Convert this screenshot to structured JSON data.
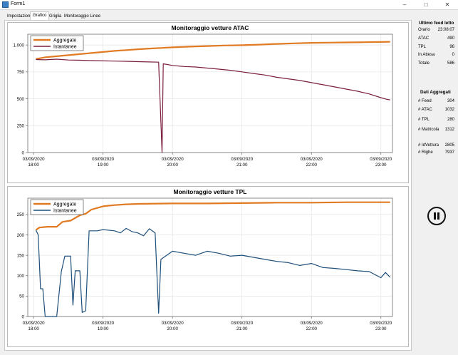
{
  "window": {
    "title": "Form1",
    "minimize_icon": "minimize-icon",
    "maximize_icon": "maximize-icon",
    "close_icon": "close-icon"
  },
  "tabs": [
    {
      "label": "Impostazioni",
      "active": false
    },
    {
      "label": "Grafico",
      "active": true
    },
    {
      "label": "Griglia",
      "active": false
    },
    {
      "label": "Monitoraggio Linee",
      "active": false
    }
  ],
  "sidebar": {
    "feed": {
      "title": "Ultimo feed letto",
      "rows": [
        {
          "label": "Orario",
          "value": "23:08:07"
        },
        {
          "label": "ATAC",
          "value": "490"
        },
        {
          "label": "TPL",
          "value": "96"
        },
        {
          "label": "In Attesa",
          "value": "0"
        },
        {
          "label": "Totale",
          "value": "586"
        }
      ]
    },
    "aggregates": {
      "title": "Dati Aggregati",
      "rows": [
        {
          "label": "# Feed",
          "value": "304"
        },
        {
          "label": "# ATAC",
          "value": "1032"
        },
        {
          "label": "# TPL",
          "value": "280"
        },
        {
          "label": "# Matricola",
          "value": "1312"
        },
        {
          "label": "# IdVettura",
          "value": "2805"
        },
        {
          "label": "# Righe",
          "value": "7937"
        }
      ]
    },
    "pause_icon": "pause-icon"
  },
  "chart_data": [
    {
      "type": "line",
      "title": "Monitoraggio vetture ATAC",
      "x_ticks": [
        {
          "t": "18:00",
          "date": "03/09/2020"
        },
        {
          "t": "19:00",
          "date": "03/09/2020"
        },
        {
          "t": "20:00",
          "date": "03/09/2020"
        },
        {
          "t": "21:00",
          "date": "03/09/2020"
        },
        {
          "t": "22:00",
          "date": "03/09/2020"
        },
        {
          "t": "23:00",
          "date": "03/09/2020"
        }
      ],
      "xlim": [
        "17:55",
        "23:10"
      ],
      "ylim": [
        0,
        1100
      ],
      "y_ticks": [
        0,
        250,
        500,
        750,
        1000
      ],
      "y_tick_labels": [
        "0",
        "250",
        "500",
        "750",
        "1.000"
      ],
      "grid": true,
      "legend": "top-left",
      "series": [
        {
          "name": "Aggregate",
          "color": "#e07b24",
          "points": [
            [
              "18:02",
              870
            ],
            [
              "18:10",
              885
            ],
            [
              "18:20",
              895
            ],
            [
              "18:30",
              905
            ],
            [
              "18:40",
              915
            ],
            [
              "18:50",
              925
            ],
            [
              "19:00",
              935
            ],
            [
              "19:10",
              945
            ],
            [
              "19:20",
              952
            ],
            [
              "19:30",
              960
            ],
            [
              "19:40",
              967
            ],
            [
              "19:50",
              972
            ],
            [
              "20:00",
              978
            ],
            [
              "20:15",
              985
            ],
            [
              "20:30",
              990
            ],
            [
              "20:45",
              995
            ],
            [
              "21:00",
              998
            ],
            [
              "21:15",
              1003
            ],
            [
              "21:30",
              1010
            ],
            [
              "21:45",
              1015
            ],
            [
              "22:00",
              1020
            ],
            [
              "22:15",
              1022
            ],
            [
              "22:30",
              1024
            ],
            [
              "22:45",
              1026
            ],
            [
              "23:00",
              1028
            ],
            [
              "23:08",
              1030
            ]
          ]
        },
        {
          "name": "Istantanee",
          "color": "#7a1f3d",
          "points": [
            [
              "18:02",
              865
            ],
            [
              "18:10",
              862
            ],
            [
              "18:20",
              868
            ],
            [
              "18:30",
              860
            ],
            [
              "18:40",
              858
            ],
            [
              "18:50",
              855
            ],
            [
              "19:00",
              852
            ],
            [
              "19:10",
              850
            ],
            [
              "19:20",
              848
            ],
            [
              "19:30",
              845
            ],
            [
              "19:40",
              842
            ],
            [
              "19:48",
              840
            ],
            [
              "19:51",
              0
            ],
            [
              "19:52",
              825
            ],
            [
              "20:00",
              810
            ],
            [
              "20:10",
              800
            ],
            [
              "20:20",
              795
            ],
            [
              "20:30",
              785
            ],
            [
              "20:40",
              775
            ],
            [
              "20:50",
              765
            ],
            [
              "21:00",
              750
            ],
            [
              "21:10",
              735
            ],
            [
              "21:20",
              720
            ],
            [
              "21:30",
              700
            ],
            [
              "21:40",
              685
            ],
            [
              "21:50",
              670
            ],
            [
              "22:00",
              650
            ],
            [
              "22:10",
              630
            ],
            [
              "22:20",
              610
            ],
            [
              "22:30",
              590
            ],
            [
              "22:40",
              570
            ],
            [
              "22:50",
              545
            ],
            [
              "23:00",
              510
            ],
            [
              "23:05",
              495
            ],
            [
              "23:08",
              490
            ]
          ]
        }
      ]
    },
    {
      "type": "line",
      "title": "Monitoraggio vetture TPL",
      "x_ticks": [
        {
          "t": "18:00",
          "date": "03/09/2020"
        },
        {
          "t": "19:00",
          "date": "03/09/2020"
        },
        {
          "t": "20:00",
          "date": "03/09/2020"
        },
        {
          "t": "21:00",
          "date": "03/09/2020"
        },
        {
          "t": "22:00",
          "date": "03/09/2020"
        },
        {
          "t": "23:00",
          "date": "03/09/2020"
        }
      ],
      "xlim": [
        "17:55",
        "23:10"
      ],
      "ylim": [
        0,
        290
      ],
      "y_ticks": [
        0,
        50,
        100,
        150,
        200,
        250
      ],
      "y_tick_labels": [
        "0",
        "50",
        "100",
        "150",
        "200",
        "250"
      ],
      "grid": true,
      "legend": "top-left",
      "series": [
        {
          "name": "Aggregate",
          "color": "#e07b24",
          "points": [
            [
              "18:02",
              212
            ],
            [
              "18:05",
              218
            ],
            [
              "18:12",
              220
            ],
            [
              "18:20",
              220
            ],
            [
              "18:25",
              232
            ],
            [
              "18:32",
              235
            ],
            [
              "18:40",
              248
            ],
            [
              "18:45",
              252
            ],
            [
              "18:50",
              262
            ],
            [
              "19:00",
              270
            ],
            [
              "19:10",
              273
            ],
            [
              "19:20",
              275
            ],
            [
              "19:30",
              276
            ],
            [
              "20:00",
              277
            ],
            [
              "20:30",
              277
            ],
            [
              "21:00",
              278
            ],
            [
              "21:30",
              279
            ],
            [
              "22:00",
              279
            ],
            [
              "22:30",
              280
            ],
            [
              "23:08",
              280
            ]
          ]
        },
        {
          "name": "Istantanee",
          "color": "#1e4e79",
          "points": [
            [
              "18:02",
              212
            ],
            [
              "18:04",
              200
            ],
            [
              "18:06",
              68
            ],
            [
              "18:08",
              68
            ],
            [
              "18:10",
              0
            ],
            [
              "18:14",
              0
            ],
            [
              "18:20",
              0
            ],
            [
              "18:24",
              110
            ],
            [
              "18:27",
              148
            ],
            [
              "18:32",
              148
            ],
            [
              "18:34",
              28
            ],
            [
              "18:36",
              112
            ],
            [
              "18:40",
              112
            ],
            [
              "18:42",
              10
            ],
            [
              "18:45",
              14
            ],
            [
              "18:48",
              210
            ],
            [
              "18:55",
              210
            ],
            [
              "19:00",
              213
            ],
            [
              "19:10",
              210
            ],
            [
              "19:15",
              205
            ],
            [
              "19:20",
              216
            ],
            [
              "19:25",
              208
            ],
            [
              "19:30",
              205
            ],
            [
              "19:35",
              198
            ],
            [
              "19:40",
              215
            ],
            [
              "19:45",
              205
            ],
            [
              "19:48",
              8
            ],
            [
              "19:50",
              140
            ],
            [
              "20:00",
              160
            ],
            [
              "20:10",
              155
            ],
            [
              "20:20",
              150
            ],
            [
              "20:30",
              160
            ],
            [
              "20:40",
              155
            ],
            [
              "20:50",
              148
            ],
            [
              "21:00",
              150
            ],
            [
              "21:10",
              145
            ],
            [
              "21:20",
              140
            ],
            [
              "21:30",
              135
            ],
            [
              "21:40",
              132
            ],
            [
              "21:50",
              125
            ],
            [
              "22:00",
              130
            ],
            [
              "22:10",
              120
            ],
            [
              "22:20",
              118
            ],
            [
              "22:30",
              115
            ],
            [
              "22:40",
              112
            ],
            [
              "22:50",
              110
            ],
            [
              "23:00",
              95
            ],
            [
              "23:04",
              108
            ],
            [
              "23:08",
              96
            ]
          ]
        }
      ]
    }
  ]
}
